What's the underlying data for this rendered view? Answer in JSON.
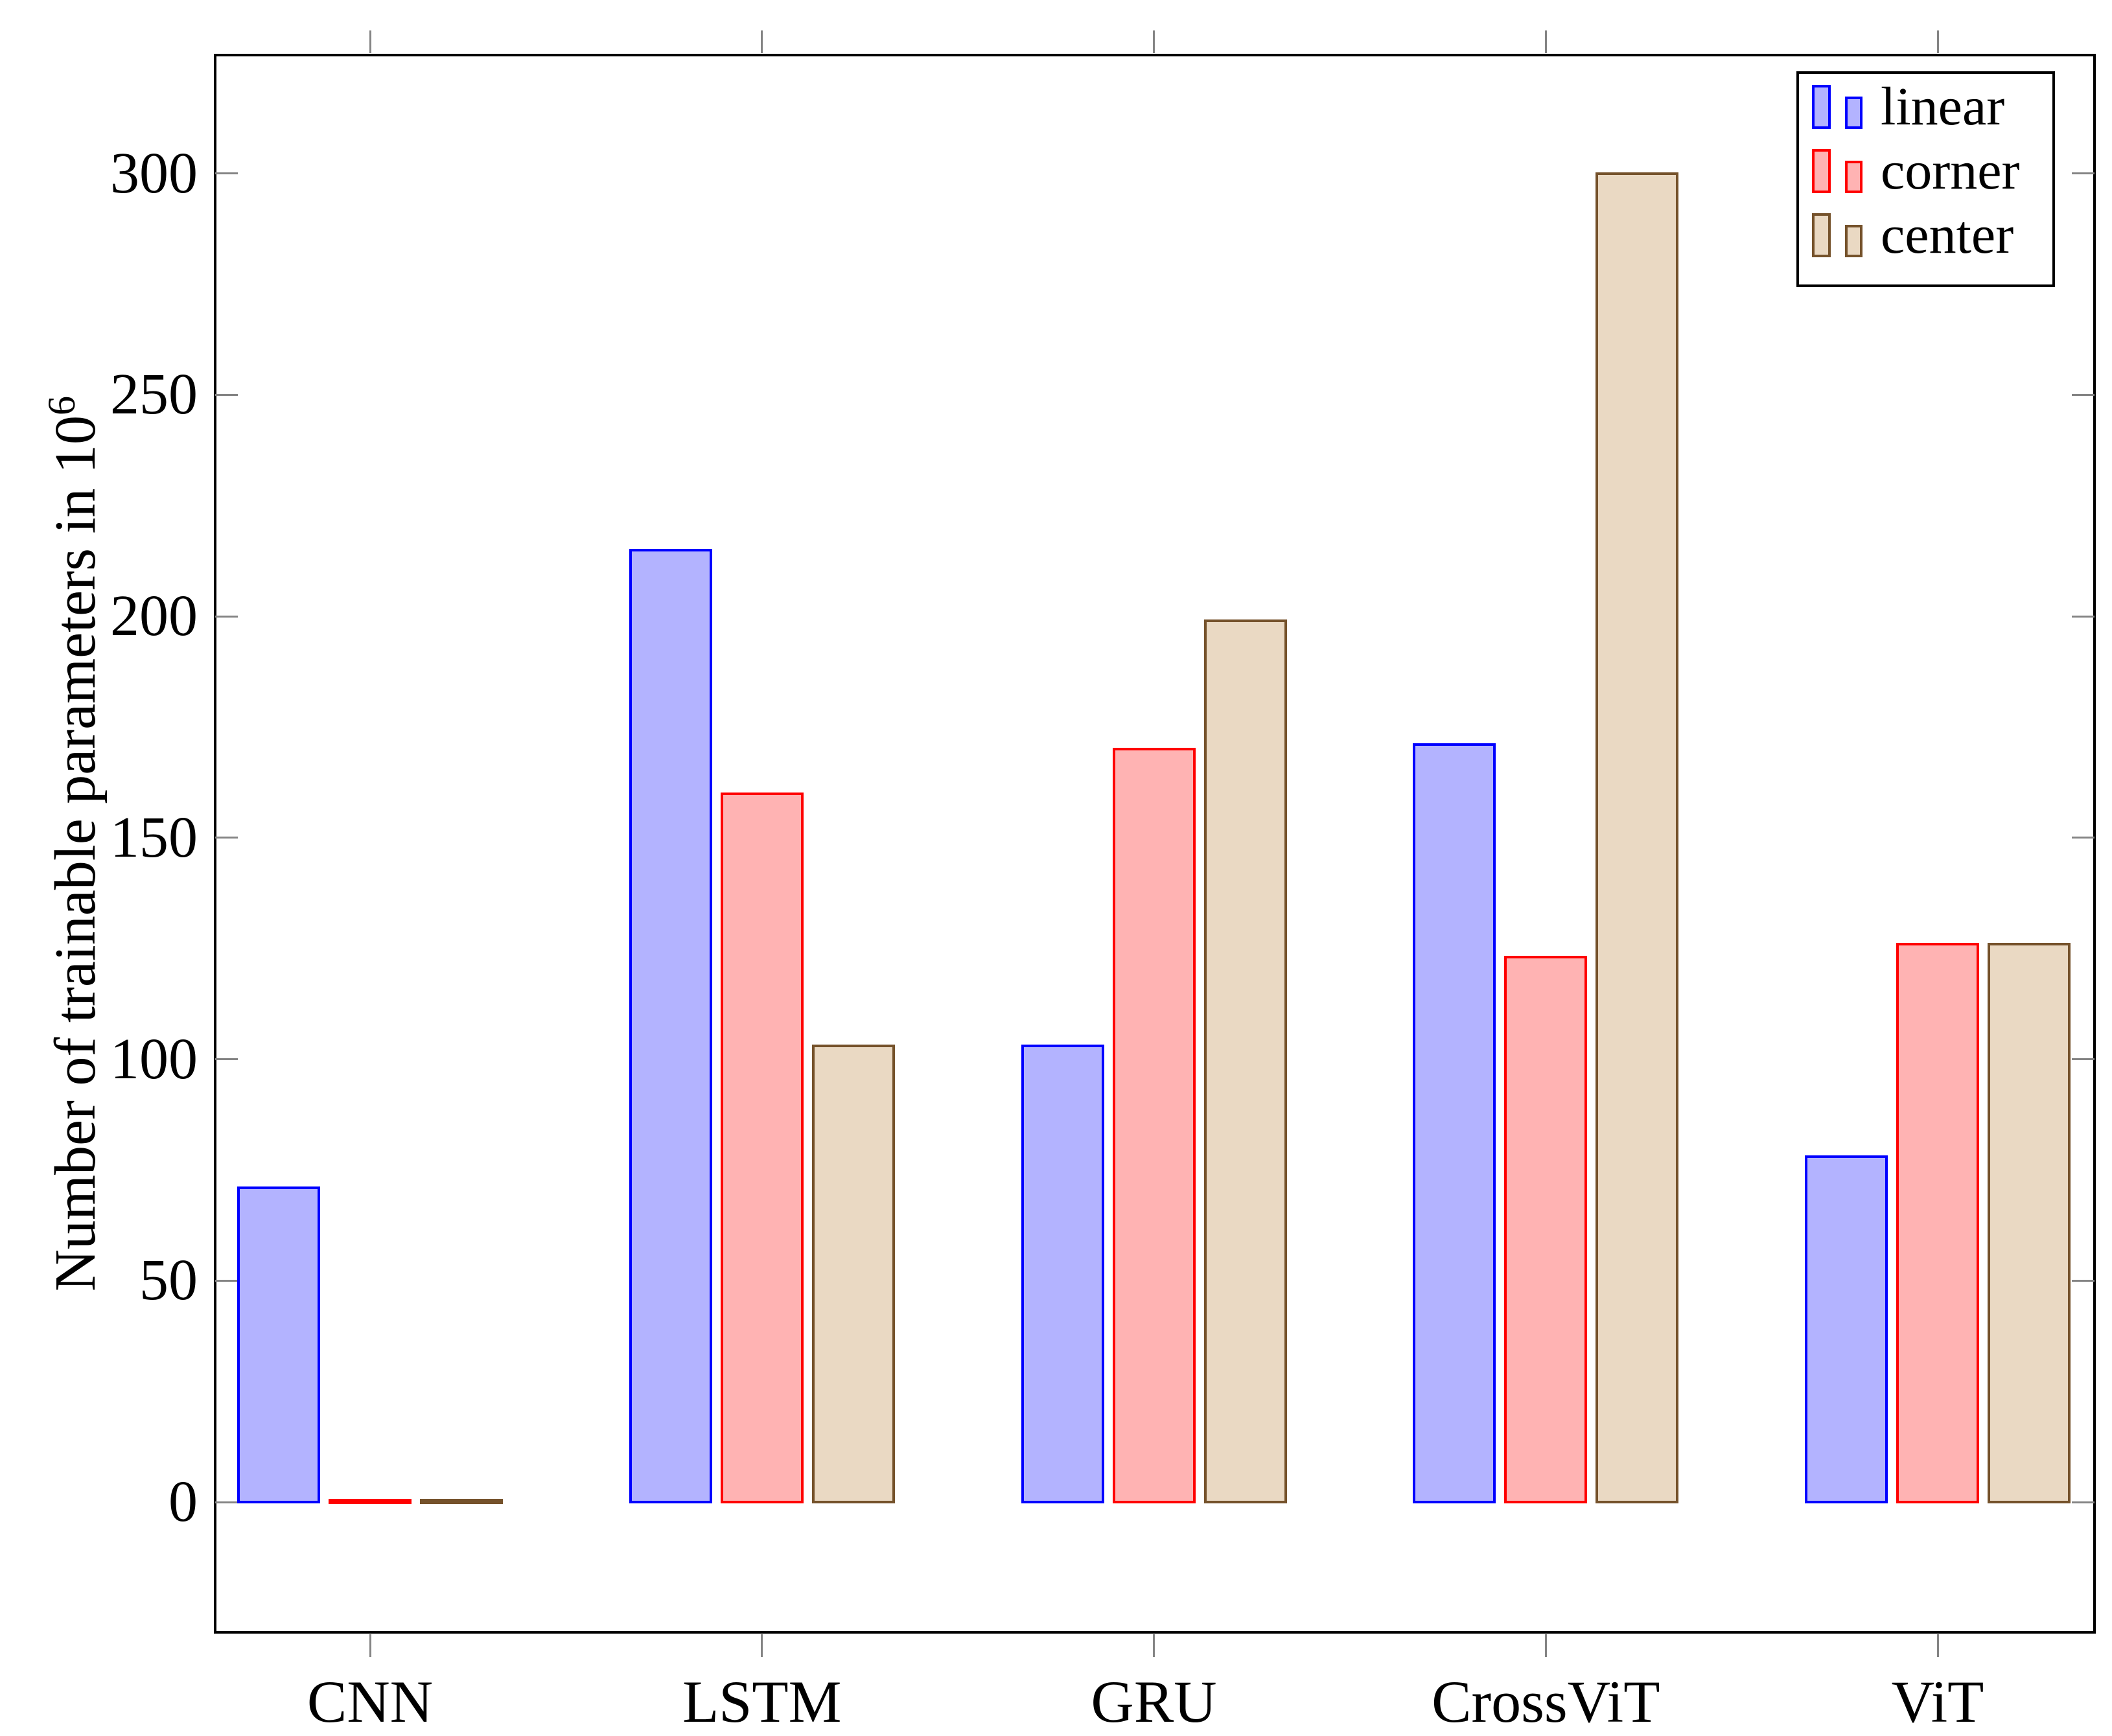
{
  "chart_data": {
    "type": "bar",
    "title": "",
    "xlabel": "",
    "ylabel_main": "Number of trainable parameters in 10",
    "ylabel_superscript": "6",
    "categories": [
      "CNN",
      "LSTM",
      "GRU",
      "CrossViT",
      "ViT"
    ],
    "series": [
      {
        "name": "linear",
        "stroke": "#0000ff",
        "fill": "#b3b3ff",
        "values": [
          71,
          215,
          103,
          171,
          78
        ]
      },
      {
        "name": "corner",
        "stroke": "#ff0000",
        "fill": "#ffb3b3",
        "values": [
          0.5,
          160,
          170,
          123,
          126
        ]
      },
      {
        "name": "center",
        "stroke": "#75522b",
        "fill": "#ead9c3",
        "values": [
          0.5,
          103,
          199,
          300,
          126
        ]
      }
    ],
    "yticks": [
      0,
      50,
      100,
      150,
      200,
      250,
      300
    ],
    "ylim": [
      -30,
      327
    ],
    "grid": false,
    "legend_position": "top-right",
    "axis_color": "#000000",
    "tick_color": "#848484"
  }
}
